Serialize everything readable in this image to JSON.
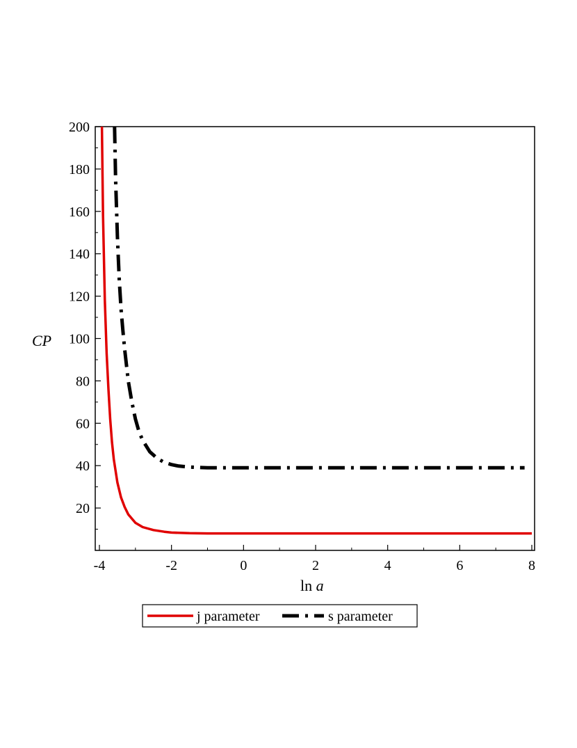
{
  "chart_data": {
    "type": "line",
    "title": "",
    "xlabel": {
      "prefix": "ln ",
      "var": "a"
    },
    "ylabel": "CP",
    "xlim": [
      -4,
      8
    ],
    "ylim": [
      0,
      200
    ],
    "x_ticks": [
      -4,
      -2,
      0,
      2,
      4,
      6,
      8
    ],
    "x_tick_labels": [
      "-4",
      "-2",
      "0",
      "2",
      "4",
      "6",
      "8"
    ],
    "y_ticks": [
      20,
      40,
      60,
      80,
      100,
      120,
      140,
      160,
      180,
      200
    ],
    "y_tick_labels": [
      "20",
      "40",
      "60",
      "80",
      "100",
      "120",
      "140",
      "160",
      "180",
      "200"
    ],
    "grid": false,
    "legend_position": "bottom",
    "series": [
      {
        "name": "j parameter",
        "color": "#e00000",
        "style": "solid",
        "x": [
          -3.93,
          -3.9,
          -3.85,
          -3.8,
          -3.75,
          -3.7,
          -3.65,
          -3.6,
          -3.5,
          -3.4,
          -3.3,
          -3.2,
          -3.0,
          -2.8,
          -2.5,
          -2.2,
          -2.0,
          -1.5,
          -1.0,
          -0.5,
          0,
          1,
          2,
          3,
          4,
          5,
          6,
          7,
          8
        ],
        "y": [
          200,
          158,
          118,
          93,
          76,
          62,
          51,
          43,
          32,
          25,
          20.5,
          17,
          13,
          11,
          9.6,
          8.8,
          8.4,
          8.1,
          8.0,
          8.0,
          8.0,
          8.0,
          8.0,
          8.0,
          8.0,
          8.0,
          8.0,
          8.0,
          8.0
        ]
      },
      {
        "name": "s parameter",
        "color": "#000000",
        "style": "dashdot",
        "x": [
          -3.58,
          -3.55,
          -3.5,
          -3.45,
          -3.4,
          -3.35,
          -3.3,
          -3.2,
          -3.1,
          -3.0,
          -2.9,
          -2.8,
          -2.6,
          -2.4,
          -2.2,
          -2.0,
          -1.8,
          -1.5,
          -1.0,
          -0.5,
          0,
          1,
          2,
          3,
          4,
          5,
          6,
          7,
          7.8
        ],
        "y": [
          200,
          175,
          148,
          128,
          114,
          104,
          95,
          80,
          70,
          62,
          56,
          52,
          46.5,
          43.5,
          41.5,
          40.5,
          39.8,
          39.3,
          39,
          39,
          39,
          39,
          39,
          39,
          39,
          39,
          39,
          39,
          39
        ]
      }
    ]
  }
}
